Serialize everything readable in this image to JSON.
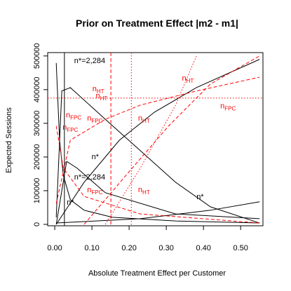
{
  "chart_data": {
    "type": "line",
    "title": "Prior on Treatment Effect |m2 - m1|",
    "x_label": "Absolute Treatment Effect per Customer",
    "y_label": "Expected Sessions",
    "xlim": [
      -0.019,
      0.56
    ],
    "ylim": [
      -4200,
      510000
    ],
    "xticks": [
      {
        "value": 0,
        "label": "0.00"
      },
      {
        "value": 0.1,
        "label": "0.10"
      },
      {
        "value": 0.2,
        "label": "0.20"
      },
      {
        "value": 0.3,
        "label": "0.30"
      },
      {
        "value": 0.4,
        "label": "0.40"
      },
      {
        "value": 0.5,
        "label": "0.50"
      }
    ],
    "yticks": [
      0,
      100000,
      200000,
      300000,
      400000,
      500000
    ],
    "series": [
      {
        "color": "#000000",
        "linetype": "solid",
        "x": [
          0.004,
          0.013,
          0.023,
          0.042,
          0.079,
          0.155,
          0.325,
          0.551
        ],
        "values": [
          479000,
          250000,
          146000,
          73000,
          42000,
          21000,
          10000,
          4000
        ]
      },
      {
        "color": "#000000",
        "linetype": "solid",
        "x": [
          0.004,
          0.019,
          0.042,
          0.136,
          0.23,
          0.325,
          0.419,
          0.551
        ],
        "values": [
          21000,
          396000,
          406000,
          312000,
          219000,
          125000,
          52000,
          4000
        ]
      },
      {
        "color": "#000000",
        "linetype": "solid",
        "x": [
          0.004,
          0.079,
          0.174,
          0.268,
          0.381,
          0.551
        ],
        "values": [
          0,
          125000,
          250000,
          333000,
          406000,
          490000
        ]
      },
      {
        "color": "#000000",
        "linetype": "solid",
        "x": [
          0.004,
          0.23,
          0.419,
          0.551
        ],
        "values": [
          4000,
          17000,
          42000,
          67000
        ]
      },
      {
        "color": "#000000",
        "linetype": "solid",
        "x": [
          0.004,
          0.032,
          0.06,
          0.136,
          0.325,
          0.551
        ],
        "values": [
          0,
          187000,
          167000,
          94000,
          31000,
          17000
        ]
      },
      {
        "color": "#ff0000",
        "linetype": "dashed",
        "x": [
          0.004,
          0.042,
          0.136,
          0.23,
          0.381,
          0.551
        ],
        "values": [
          62000,
          250000,
          312000,
          354000,
          396000,
          437000
        ]
      },
      {
        "color": "#ff0000",
        "linetype": "dashed",
        "x": [
          0.004,
          0.023,
          0.079,
          0.23,
          0.551
        ],
        "values": [
          292000,
          167000,
          83000,
          31000,
          4000
        ]
      },
      {
        "color": "#ff0000",
        "linetype": "dashed",
        "x": [
          0.079,
          0.192,
          0.306,
          0.419,
          0.551
        ],
        "values": [
          0,
          146000,
          292000,
          417000,
          500000
        ]
      },
      {
        "color": "#ff0000",
        "linetype": "dotted",
        "x": [
          0.136,
          0.23,
          0.325,
          0.381
        ],
        "values": [
          0,
          167000,
          354000,
          500000
        ]
      }
    ],
    "vlines": [
      {
        "x": 0.026,
        "color": "#000000",
        "linetype": "solid"
      },
      {
        "x": 0.151,
        "color": "#ff0000",
        "linetype": "dashed"
      },
      {
        "x": 0.206,
        "color": "#ff0000",
        "linetype": "dotted"
      }
    ],
    "hlines": [
      {
        "y": 375000,
        "color": "#ff0000",
        "linetype": "dotted"
      }
    ],
    "annotations": [
      {
        "text": "n*=2,284",
        "x": 0.094,
        "y": 479000,
        "color": "#000000"
      },
      {
        "text": "n*=2,284",
        "x": 0.094,
        "y": 133000,
        "color": "#000000"
      },
      {
        "text": "n*",
        "x": 0.109,
        "y": 194000,
        "color": "#000000"
      },
      {
        "text": "n*",
        "x": 0.042,
        "y": 58000,
        "color": "#000000"
      },
      {
        "text": "n*",
        "x": 0.391,
        "y": 75000,
        "color": "#000000"
      },
      {
        "text": "n",
        "sub": "HT",
        "x": 0.117,
        "y": 396000,
        "color": "#ff0000"
      },
      {
        "text": "n",
        "sub": "HT",
        "x": 0.126,
        "y": 375000,
        "color": "#ff0000"
      },
      {
        "text": "n",
        "sub": "HT",
        "x": 0.358,
        "y": 427000,
        "color": "#ff0000"
      },
      {
        "text": "n",
        "sub": "HT",
        "x": 0.24,
        "y": 308000,
        "color": "#ff0000"
      },
      {
        "text": "n",
        "sub": "HT",
        "x": 0.24,
        "y": 96000,
        "color": "#ff0000"
      },
      {
        "text": "n",
        "sub": "FPC",
        "x": 0.051,
        "y": 317000,
        "color": "#ff0000"
      },
      {
        "text": "n",
        "sub": "FPC",
        "x": 0.108,
        "y": 308000,
        "color": "#ff0000"
      },
      {
        "text": "n",
        "sub": "FPC",
        "x": 0.042,
        "y": 281000,
        "color": "#ff0000"
      },
      {
        "text": "n",
        "sub": "FPC",
        "x": 0.466,
        "y": 344000,
        "color": "#ff0000"
      },
      {
        "text": "n",
        "sub": "FPC",
        "x": 0.108,
        "y": 96000,
        "color": "#ff0000"
      }
    ]
  }
}
